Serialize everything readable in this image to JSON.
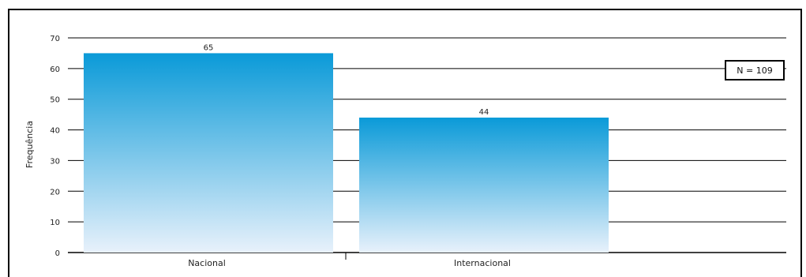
{
  "chart_data": {
    "type": "bar",
    "categories": [
      "Nacional",
      "Internacional"
    ],
    "values": [
      65,
      44
    ],
    "ylabel": "Frequência",
    "ylim": [
      0,
      70
    ],
    "yticks": [
      0,
      10,
      20,
      30,
      40,
      50,
      60,
      70
    ],
    "grid": true,
    "annotation": "N = 109",
    "bar_color_top": "#0a9ad8",
    "bar_color_bottom": "#e8f1fb"
  }
}
